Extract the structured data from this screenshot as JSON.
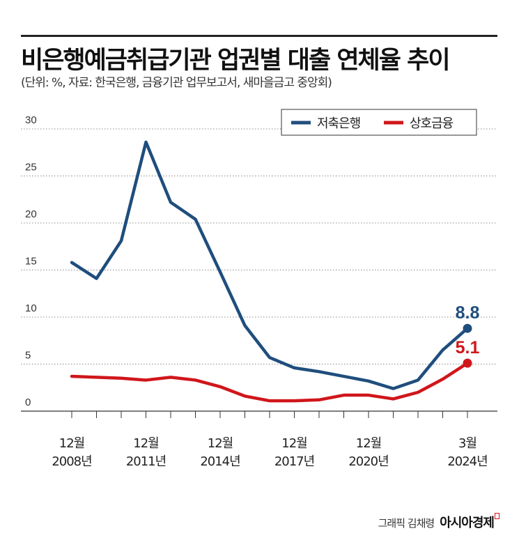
{
  "header": {
    "title": "비은행예금취급기관 업권별 대출 연체율 추이",
    "subtitle": "(단위: %, 자료: 한국은행, 금융기관 업무보고서, 새마을금고 중앙회)"
  },
  "chart_data": {
    "type": "line",
    "title": "비은행예금취급기관 업권별 대출 연체율 추이",
    "ylabel": "%",
    "ylim": [
      0,
      30
    ],
    "yticks": [
      0,
      5,
      10,
      15,
      20,
      25,
      30
    ],
    "grid": true,
    "legend_placement": "top-right",
    "categories": [
      "2008.12",
      "2009.12",
      "2010.12",
      "2011.12",
      "2012.12",
      "2013.12",
      "2014.12",
      "2015.12",
      "2016.12",
      "2017.12",
      "2018.12",
      "2019.12",
      "2020.12",
      "2021.12",
      "2022.12",
      "2023.12",
      "2024.3"
    ],
    "xtick_labels": [
      {
        "index": 0,
        "month": "12월",
        "year": "2008년"
      },
      {
        "index": 3,
        "month": "12월",
        "year": "2011년"
      },
      {
        "index": 6,
        "month": "12월",
        "year": "2014년"
      },
      {
        "index": 9,
        "month": "12월",
        "year": "2017년"
      },
      {
        "index": 12,
        "month": "12월",
        "year": "2020년"
      },
      {
        "index": 16,
        "month": "3월",
        "year": "2024년"
      }
    ],
    "series": [
      {
        "name": "저축은행",
        "color": "#1f4e7d",
        "values": [
          15.8,
          14.1,
          18.1,
          28.6,
          22.2,
          20.4,
          14.8,
          9.1,
          5.7,
          4.6,
          4.2,
          3.7,
          3.2,
          2.4,
          3.3,
          6.5,
          8.8
        ],
        "end_label": "8.8"
      },
      {
        "name": "상호금융",
        "color": "#d0161b",
        "values": [
          3.7,
          3.6,
          3.5,
          3.3,
          3.6,
          3.3,
          2.6,
          1.6,
          1.1,
          1.1,
          1.2,
          1.7,
          1.7,
          1.3,
          2.0,
          3.4,
          5.1
        ],
        "end_label": "5.1"
      }
    ]
  },
  "footer": {
    "credit": "그래픽 김채령",
    "logo": "아시아경제"
  }
}
